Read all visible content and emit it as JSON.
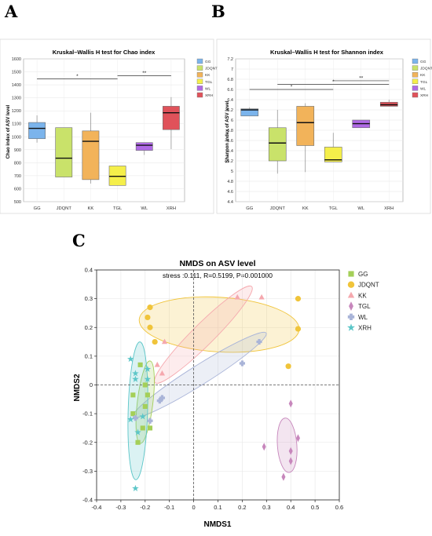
{
  "panel_labels": [
    "A",
    "B",
    "C"
  ],
  "palette": {
    "GG": "#7bb4ec",
    "JDQNT": "#c9e26a",
    "KK": "#f2b35a",
    "TGL": "#f5ef4a",
    "WL": "#b06ae6",
    "XRH": "#e0525a"
  },
  "nmds_palette": {
    "GG": "#a4cf58",
    "JDQNT": "#f0c43a",
    "KK": "#f5a8ae",
    "TGL": "#c787bc",
    "WL": "#a9b4d8",
    "XRH": "#5cc6c8"
  },
  "chart_data": [
    {
      "type": "box",
      "panel": "A",
      "title": "Kruskal–Wallis H test for Chao index",
      "xlabel": "",
      "ylabel": "Chao index of ASV level",
      "ylim": [
        500,
        1600
      ],
      "yticks": [
        500,
        600,
        700,
        800,
        900,
        1000,
        1100,
        1200,
        1300,
        1400,
        1500,
        1600
      ],
      "categories": [
        "GG",
        "JDQNT",
        "KK",
        "TGL",
        "WL",
        "XRH"
      ],
      "boxes": [
        {
          "name": "GG",
          "min": 955,
          "q1": 985,
          "median": 1065,
          "q3": 1110,
          "max": 1165
        },
        {
          "name": "JDQNT",
          "min": 690,
          "q1": 690,
          "median": 835,
          "q3": 1070,
          "max": 1070
        },
        {
          "name": "KK",
          "min": 640,
          "q1": 670,
          "median": 965,
          "q3": 1045,
          "max": 1185
        },
        {
          "name": "TGL",
          "min": 625,
          "q1": 625,
          "median": 695,
          "q3": 775,
          "max": 775
        },
        {
          "name": "WL",
          "min": 860,
          "q1": 895,
          "median": 935,
          "q3": 955,
          "max": 955
        },
        {
          "name": "XRH",
          "min": 905,
          "q1": 1055,
          "median": 1185,
          "q3": 1235,
          "max": 1305
        }
      ],
      "significance": [
        {
          "from": "GG",
          "to": "TGL",
          "label": "*",
          "y": 1445
        },
        {
          "from": "TGL",
          "to": "XRH",
          "label": "**",
          "y": 1470
        }
      ],
      "legend": [
        "GG",
        "JDQNT",
        "KK",
        "TGL",
        "WL",
        "XRH"
      ],
      "legend_position": "right",
      "grid": true
    },
    {
      "type": "box",
      "panel": "B",
      "title": "Kruskal–Wallis H test for Shannon index",
      "xlabel": "",
      "ylabel": "Shannon index of ASV level",
      "ylim": [
        4.4,
        7.2
      ],
      "yticks": [
        4.4,
        4.6,
        4.8,
        5,
        5.2,
        5.4,
        5.6,
        5.8,
        6,
        6.2,
        6.4,
        6.6,
        6.8,
        7,
        7.2
      ],
      "categories": [
        "GG",
        "JDQNT",
        "KK",
        "TGL",
        "WL",
        "XRH"
      ],
      "boxes": [
        {
          "name": "GG",
          "min": 6.08,
          "q1": 6.08,
          "median": 6.2,
          "q3": 6.22,
          "max": 6.25
        },
        {
          "name": "JDQNT",
          "min": 4.95,
          "q1": 5.2,
          "median": 5.55,
          "q3": 5.85,
          "max": 6.2
        },
        {
          "name": "KK",
          "min": 4.98,
          "q1": 5.5,
          "median": 5.95,
          "q3": 6.27,
          "max": 6.33
        },
        {
          "name": "TGL",
          "min": 5.18,
          "q1": 5.18,
          "median": 5.22,
          "q3": 5.47,
          "max": 5.75
        },
        {
          "name": "WL",
          "min": 5.85,
          "q1": 5.85,
          "median": 5.93,
          "q3": 6.0,
          "max": 6.0
        },
        {
          "name": "XRH",
          "min": 6.27,
          "q1": 6.27,
          "median": 6.3,
          "q3": 6.35,
          "max": 6.4
        }
      ],
      "significance": [
        {
          "from": "GG",
          "to": "TGL",
          "label": "*",
          "y": 6.6
        },
        {
          "from": "JDQNT",
          "to": "XRH",
          "label": "*",
          "y": 6.7
        },
        {
          "from": "TGL",
          "to": "XRH",
          "label": "**",
          "y": 6.77
        }
      ],
      "legend": [
        "GG",
        "JDQNT",
        "KK",
        "TGL",
        "WL",
        "XRH"
      ],
      "legend_position": "right",
      "grid": true
    },
    {
      "type": "scatter",
      "panel": "C",
      "title": "NMDS on ASV level",
      "subtitle": "stress :0.111, R=0.5199, P=0.001000",
      "xlabel": "NMDS1",
      "ylabel": "NMDS2",
      "xlim": [
        -0.4,
        0.6
      ],
      "ylim": [
        -0.4,
        0.4
      ],
      "xticks": [
        -0.4,
        -0.3,
        -0.2,
        -0.1,
        0,
        0.1,
        0.2,
        0.3,
        0.4,
        0.5,
        0.6
      ],
      "yticks": [
        -0.4,
        -0.3,
        -0.2,
        -0.1,
        0,
        0.1,
        0.2,
        0.3,
        0.4
      ],
      "legend_position": "right",
      "grid": true,
      "series": [
        {
          "name": "GG",
          "marker": "square",
          "points": [
            [
              -0.22,
              0.07
            ],
            [
              -0.25,
              -0.035
            ],
            [
              -0.19,
              -0.035
            ],
            [
              -0.2,
              0.0
            ],
            [
              -0.2,
              -0.075
            ],
            [
              -0.25,
              -0.1
            ],
            [
              -0.23,
              -0.2
            ],
            [
              -0.21,
              -0.15
            ],
            [
              -0.18,
              -0.15
            ]
          ]
        },
        {
          "name": "JDQNT",
          "marker": "circle",
          "points": [
            [
              -0.18,
              0.27
            ],
            [
              -0.19,
              0.235
            ],
            [
              -0.18,
              0.2
            ],
            [
              -0.16,
              0.15
            ],
            [
              0.43,
              0.3
            ],
            [
              0.43,
              0.195
            ],
            [
              0.39,
              0.065
            ]
          ]
        },
        {
          "name": "KK",
          "marker": "triangle",
          "points": [
            [
              0.18,
              0.305
            ],
            [
              0.28,
              0.305
            ],
            [
              -0.12,
              0.15
            ],
            [
              -0.15,
              0.07
            ],
            [
              -0.13,
              0.04
            ]
          ]
        },
        {
          "name": "TGL",
          "marker": "diamond",
          "points": [
            [
              0.4,
              -0.065
            ],
            [
              0.29,
              -0.215
            ],
            [
              0.43,
              -0.185
            ],
            [
              0.4,
              -0.23
            ],
            [
              0.4,
              -0.265
            ],
            [
              0.37,
              -0.32
            ]
          ]
        },
        {
          "name": "WL",
          "marker": "cross",
          "points": [
            [
              0.27,
              0.15
            ],
            [
              0.2,
              0.075
            ],
            [
              -0.13,
              -0.045
            ],
            [
              -0.14,
              -0.055
            ],
            [
              -0.24,
              -0.115
            ],
            [
              -0.18,
              -0.125
            ]
          ]
        },
        {
          "name": "XRH",
          "marker": "star",
          "points": [
            [
              -0.26,
              0.09
            ],
            [
              -0.24,
              0.04
            ],
            [
              -0.19,
              0.055
            ],
            [
              -0.24,
              0.02
            ],
            [
              -0.19,
              0.02
            ],
            [
              -0.21,
              -0.11
            ],
            [
              -0.26,
              -0.12
            ],
            [
              -0.23,
              -0.165
            ],
            [
              -0.24,
              -0.36
            ]
          ]
        }
      ],
      "ellipses": [
        {
          "name": "JDQNT",
          "cx": 0.105,
          "cy": 0.21,
          "rx": 0.33,
          "ry": 0.095,
          "angle": -3
        },
        {
          "name": "KK",
          "cx": 0.04,
          "cy": 0.175,
          "rx": 0.26,
          "ry": 0.04,
          "angle": 40
        },
        {
          "name": "WL",
          "cx": 0.025,
          "cy": 0.035,
          "rx": 0.31,
          "ry": 0.035,
          "angle": 28
        },
        {
          "name": "GG",
          "cx": -0.2,
          "cy": -0.06,
          "rx": 0.145,
          "ry": 0.032,
          "angle": 82
        },
        {
          "name": "XRH",
          "cx": -0.23,
          "cy": -0.09,
          "rx": 0.24,
          "ry": 0.04,
          "angle": 88
        },
        {
          "name": "TGL",
          "cx": 0.385,
          "cy": -0.21,
          "rx": 0.095,
          "ry": 0.04,
          "angle": 95
        }
      ]
    }
  ]
}
